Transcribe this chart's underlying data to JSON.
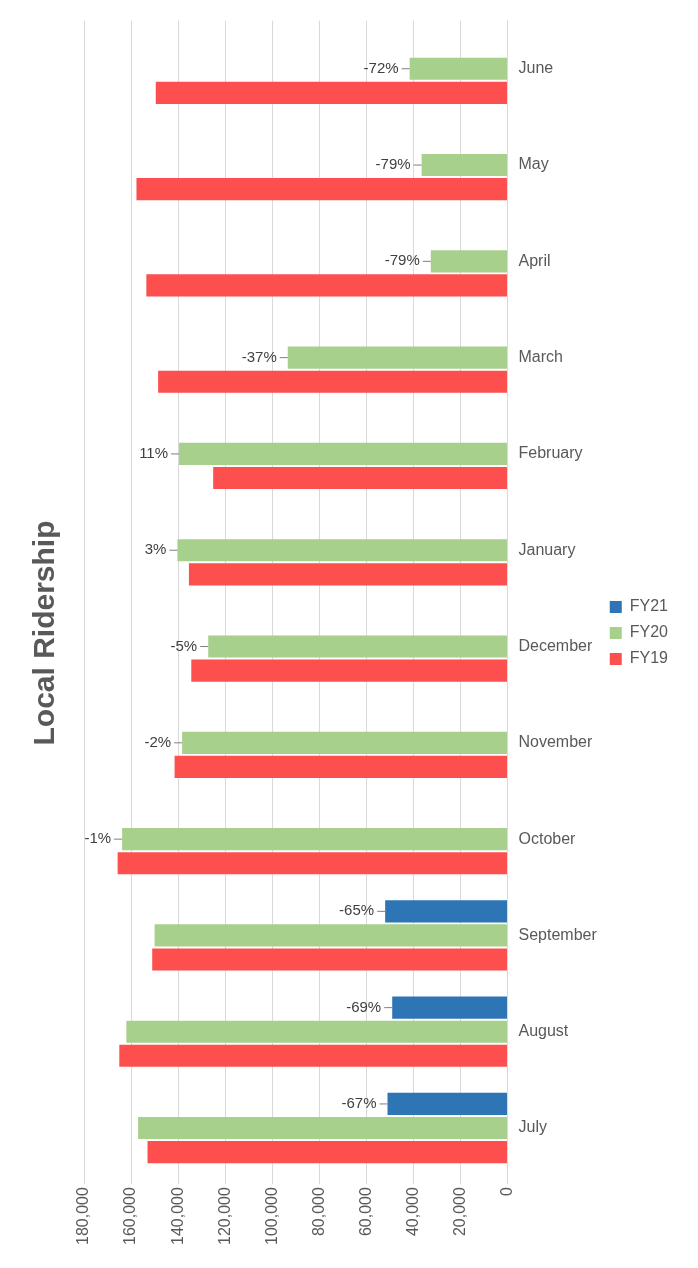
{
  "chart_data": {
    "type": "bar",
    "orientation": "horizontal",
    "title": "Local Ridership",
    "categories": [
      "June",
      "May",
      "April",
      "March",
      "February",
      "January",
      "December",
      "November",
      "October",
      "September",
      "August",
      "July"
    ],
    "series": [
      {
        "name": "FY19",
        "color": "#fe4f4f",
        "values": [
          149500,
          157700,
          153500,
          148500,
          125100,
          135400,
          134400,
          141500,
          165700,
          151000,
          165000,
          153000
        ]
      },
      {
        "name": "FY20",
        "color": "#a8d08d",
        "values": [
          41600,
          36500,
          32600,
          93400,
          139600,
          140300,
          127200,
          138300,
          163800,
          150000,
          162000,
          157000
        ]
      },
      {
        "name": "FY21",
        "color": "#2e75b6",
        "values": [
          null,
          null,
          null,
          null,
          null,
          null,
          null,
          null,
          null,
          52000,
          49000,
          51000
        ]
      }
    ],
    "xlim": [
      180000,
      0
    ],
    "xticks": [
      {
        "value": 180000,
        "label": "180,000"
      },
      {
        "value": 160000,
        "label": "160,000"
      },
      {
        "value": 140000,
        "label": "140,000"
      },
      {
        "value": 120000,
        "label": "120,000"
      },
      {
        "value": 100000,
        "label": "100,000"
      },
      {
        "value": 80000,
        "label": "80,000"
      },
      {
        "value": 60000,
        "label": "60,000"
      },
      {
        "value": 40000,
        "label": "40,000"
      },
      {
        "value": 20000,
        "label": "20,000"
      },
      0
    ],
    "grid": "x",
    "legend": "right",
    "annotations": [
      {
        "text": "-72%",
        "x": 41600,
        "y": "June"
      },
      {
        "text": "-79%",
        "x": 36500,
        "y": "May"
      },
      {
        "text": "-79%",
        "x": 32600,
        "y": "April"
      },
      {
        "text": "-37%",
        "x": 93400,
        "y": "March"
      },
      {
        "text": "11%",
        "x": 139600,
        "y": "February"
      },
      {
        "text": "3%",
        "x": 140300,
        "y": "January"
      },
      {
        "text": "-5%",
        "x": 127200,
        "y": "December"
      },
      {
        "text": "-2%",
        "x": 138300,
        "y": "November"
      },
      {
        "text": "-1%",
        "x": 163800,
        "y": "October"
      },
      "-65%",
      "-69%",
      "-67%"
    ]
  }
}
